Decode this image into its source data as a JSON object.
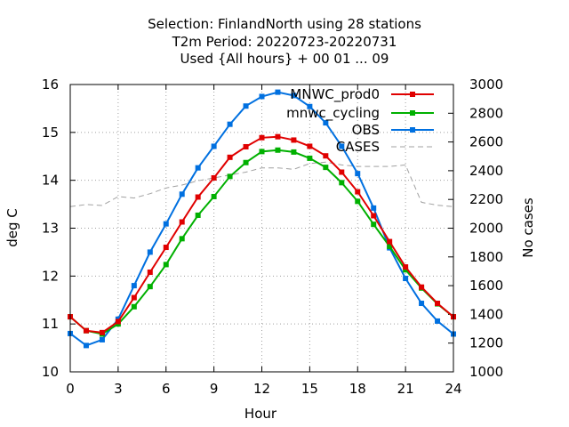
{
  "chart_data": {
    "type": "line",
    "title_lines": [
      "Selection: FinlandNorth using    28 stations",
      "T2m   Period: 20220723-20220731",
      "Used {All hours} + 00 01 ... 09"
    ],
    "xlabel": "Hour",
    "ylabel": "deg C",
    "y2label": "No cases",
    "xlim": [
      0,
      24
    ],
    "ylim": [
      10,
      16
    ],
    "y2lim": [
      1000,
      3000
    ],
    "xticks": [
      0,
      3,
      6,
      9,
      12,
      15,
      18,
      21,
      24
    ],
    "yticks": [
      10,
      11,
      12,
      13,
      14,
      15,
      16
    ],
    "y2ticks": [
      1000,
      1200,
      1400,
      1600,
      1800,
      2000,
      2200,
      2400,
      2600,
      2800,
      3000
    ],
    "grid": true,
    "legend_position": "top-right",
    "series": [
      {
        "name": "MNWC_prod0",
        "color": "#e00000",
        "axis": "y",
        "x": [
          0,
          1,
          2,
          3,
          4,
          5,
          6,
          7,
          8,
          9,
          10,
          11,
          12,
          13,
          14,
          15,
          16,
          17,
          18,
          19,
          20,
          21,
          22,
          23,
          24
        ],
        "values": [
          11.15,
          10.86,
          10.82,
          11.05,
          11.55,
          12.08,
          12.6,
          13.13,
          13.65,
          14.05,
          14.48,
          14.7,
          14.89,
          14.91,
          14.84,
          14.71,
          14.51,
          14.17,
          13.76,
          13.26,
          12.72,
          12.19,
          11.77,
          11.43,
          11.15
        ]
      },
      {
        "name": "mnwc_cycling",
        "color": "#00b000",
        "axis": "y",
        "x": [
          0,
          1,
          2,
          3,
          4,
          5,
          6,
          7,
          8,
          9,
          10,
          11,
          12,
          13,
          14,
          15,
          16,
          17,
          18,
          19,
          20,
          21,
          22,
          23,
          24
        ],
        "values": [
          11.15,
          10.86,
          10.79,
          11.0,
          11.36,
          11.78,
          12.24,
          12.78,
          13.27,
          13.66,
          14.08,
          14.37,
          14.6,
          14.63,
          14.59,
          14.46,
          14.27,
          13.95,
          13.56,
          13.08,
          12.62,
          12.13,
          11.75,
          11.42,
          11.15
        ]
      },
      {
        "name": "OBS",
        "color": "#0070e0",
        "axis": "y",
        "x": [
          0,
          1,
          2,
          3,
          4,
          5,
          6,
          7,
          8,
          9,
          10,
          11,
          12,
          13,
          14,
          15,
          16,
          17,
          18,
          19,
          20,
          21,
          22,
          23,
          24
        ],
        "values": [
          10.8,
          10.55,
          10.67,
          11.1,
          11.8,
          12.5,
          13.09,
          13.71,
          14.26,
          14.71,
          15.17,
          15.55,
          15.75,
          15.84,
          15.77,
          15.54,
          15.2,
          14.71,
          14.14,
          13.42,
          12.59,
          11.95,
          11.43,
          11.06,
          10.79
        ]
      },
      {
        "name": "CASES",
        "color": "#a0a0a0",
        "axis": "y2",
        "x": [
          0,
          1,
          2,
          3,
          4,
          5,
          6,
          7,
          8,
          9,
          10,
          11,
          12,
          13,
          14,
          15,
          16,
          17,
          18,
          19,
          20,
          21,
          22,
          23,
          24
        ],
        "values": [
          2150,
          2165,
          2158,
          2220,
          2210,
          2240,
          2280,
          2300,
          2330,
          2350,
          2370,
          2390,
          2420,
          2420,
          2410,
          2450,
          2460,
          2440,
          2430,
          2430,
          2430,
          2440,
          2180,
          2160,
          2150
        ]
      }
    ]
  }
}
